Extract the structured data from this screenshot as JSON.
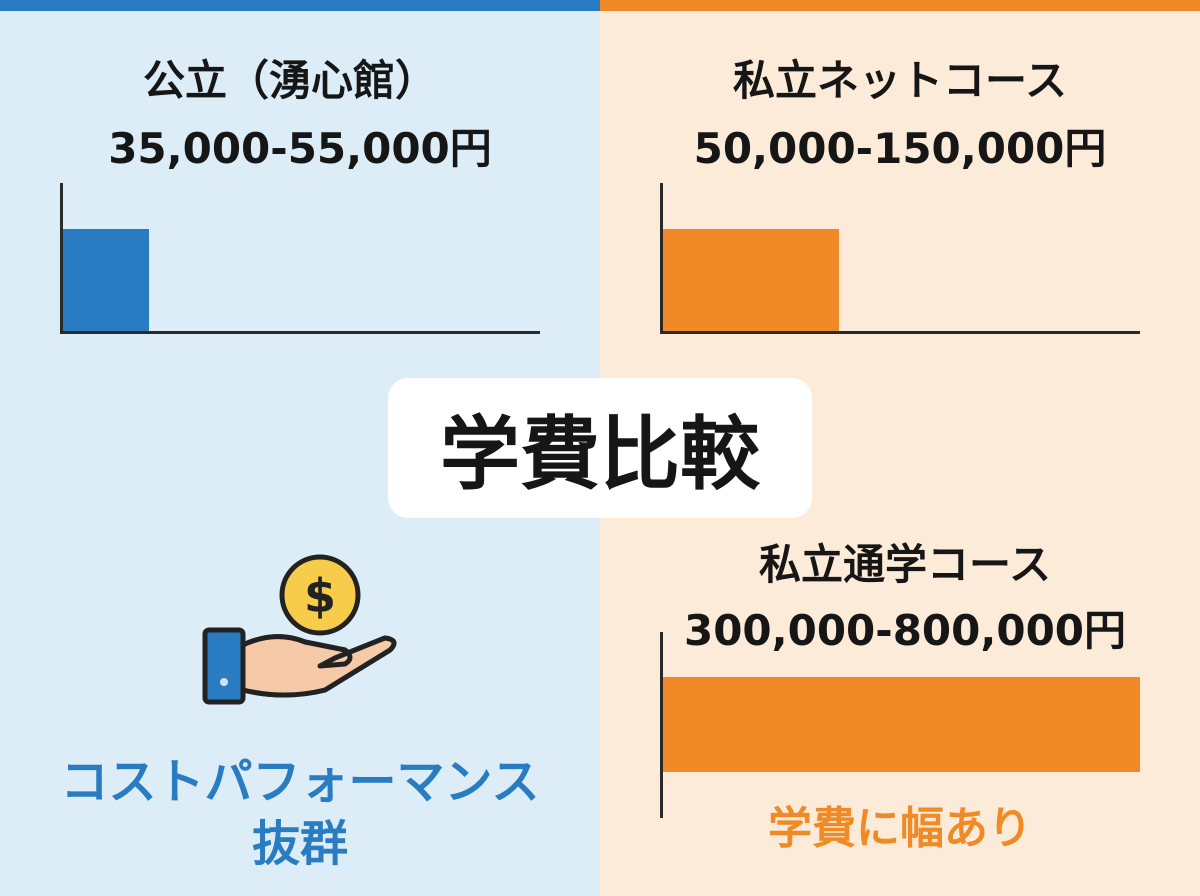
{
  "colors": {
    "blue": "#2a7cc2",
    "orange": "#f08a26",
    "bg_left": "#dcedf8",
    "bg_right": "#fcebd8"
  },
  "center_title": "学費比較",
  "chart_data": [
    {
      "type": "bar",
      "name": "公立（湧心館）",
      "range_label": "35,000-55,000円",
      "fill_fraction": 0.18,
      "color": "#2a7cc2"
    },
    {
      "type": "bar",
      "name": "私立ネットコース",
      "range_label": "50,000-150,000円",
      "fill_fraction": 0.37,
      "color": "#f08a26"
    },
    {
      "type": "bar",
      "name": "私立通学コース",
      "range_label": "300,000-800,000円",
      "fill_fraction": 1.0,
      "color": "#f08a26"
    }
  ],
  "left_caption": {
    "line1": "コストパフォーマンス",
    "line2": "抜群"
  },
  "right_caption": "学費に幅あり",
  "icon": "hand-holding-coin-icon"
}
